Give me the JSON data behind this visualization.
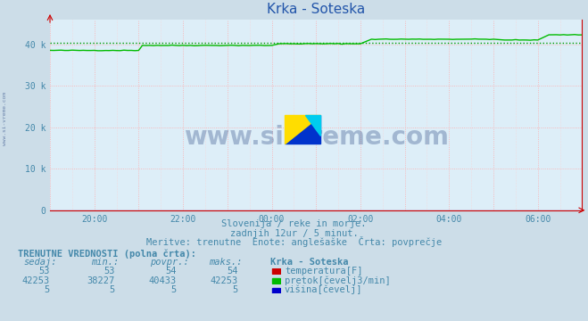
{
  "title": "Krka - Soteska",
  "bg_color": "#ccdde8",
  "plot_bg_color": "#ddeef8",
  "grid_color": "#ffaaaa",
  "flow_color": "#00bb00",
  "temp_color": "#cc0000",
  "height_color": "#0000cc",
  "avg_line_color": "#009900",
  "ylim": [
    0,
    50000
  ],
  "yticks": [
    0,
    10000,
    20000,
    30000,
    40000
  ],
  "ytick_labels": [
    "0",
    "10 k",
    "20 k",
    "30 k",
    "40 k"
  ],
  "x_tick_labels": [
    "20:00",
    "22:00",
    "00:00",
    "02:00",
    "04:00",
    "06:00"
  ],
  "x_tick_positions": [
    1,
    3,
    5,
    7,
    9,
    11
  ],
  "subtitle1": "Slovenija / reke in morje.",
  "subtitle2": "zadnjih 12ur / 5 minut.",
  "subtitle3": "Meritve: trenutne  Enote: anglešaške  Črta: povprečje",
  "table_header": "TRENUTNE VREDNOSTI (polna črta):",
  "col_headers": [
    "sedaj:",
    "min.:",
    "povpr.:",
    "maks.:",
    "Krka - Soteska"
  ],
  "row1": [
    "53",
    "53",
    "54",
    "54"
  ],
  "row2": [
    "42253",
    "38227",
    "40433",
    "42253"
  ],
  "row3": [
    "5",
    "5",
    "5",
    "5"
  ],
  "label1": "temperatura[F]",
  "label2": "pretok[čevelj3/min]",
  "label3": "višina[čevelj]",
  "watermark": "www.si-vreme.com",
  "watermark_color": "#1a3a7a",
  "side_text": "www.si-vreme.com",
  "avg_flow": 40433,
  "n_points": 145
}
